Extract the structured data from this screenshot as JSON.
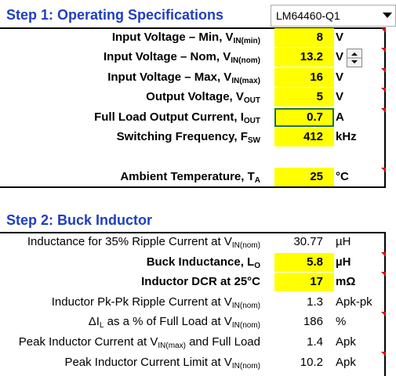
{
  "step1": {
    "title": "Step 1: Operating Specifications",
    "device": "LM64460-Q1",
    "rows": [
      {
        "label": [
          "Input Voltage – Min, V",
          "IN(min)"
        ],
        "value": "8",
        "unit": "V"
      },
      {
        "label": [
          "Input Voltage – Nom, V",
          "IN(nom)"
        ],
        "value": "13.2",
        "unit": "V"
      },
      {
        "label": [
          "Input Voltage – Max, V",
          "IN(max)"
        ],
        "value": "16",
        "unit": "V"
      },
      {
        "label": [
          "Output Voltage, V",
          "OUT"
        ],
        "value": "5",
        "unit": "V"
      },
      {
        "label": [
          "Full Load Output Current, I",
          "OUT"
        ],
        "value": "0.7",
        "unit": "A"
      },
      {
        "label": [
          "Switching Frequency, F",
          "SW"
        ],
        "value": "412",
        "unit": "kHz"
      },
      {
        "label": [
          "Ambient Temperature, T",
          "A"
        ],
        "value": "25",
        "unit": "°C"
      }
    ]
  },
  "step2": {
    "title": "Step 2: Buck Inductor",
    "rows": [
      {
        "label": [
          "Inductance for 35% Ripple Current at V",
          "IN(nom)"
        ],
        "value": "30.77",
        "unit": "µH",
        "input": false
      },
      {
        "label": [
          "Buck Inductance, L",
          "O"
        ],
        "value": "5.8",
        "unit": "µH",
        "input": true
      },
      {
        "label": [
          "Inductor DCR at 25°C"
        ],
        "value": "17",
        "unit": "mΩ",
        "input": true
      },
      {
        "label": [
          "Inductor Pk-Pk Ripple Current at V",
          "IN(nom)"
        ],
        "value": "1.3",
        "unit": "Apk-pk",
        "input": false
      },
      {
        "label": [
          "ΔI",
          "L",
          " as a % of Full Load at V",
          "IN(nom)"
        ],
        "value": "186",
        "unit": "%",
        "input": false
      },
      {
        "label": [
          "Peak Inductor Current at V",
          "IN(max)",
          " and Full Load"
        ],
        "value": "1.4",
        "unit": "Apk",
        "input": false
      },
      {
        "label": [
          "Peak Inductor Current Limit at V",
          "IN(nom)"
        ],
        "value": "10.2",
        "unit": "Apk",
        "input": false
      }
    ]
  }
}
